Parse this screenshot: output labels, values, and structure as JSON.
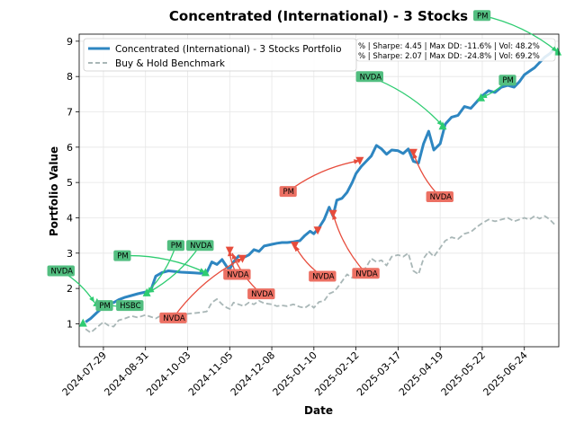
{
  "chart_data": {
    "type": "line",
    "title": "Concentrated (International) - 3 Stocks",
    "xlabel": "Date",
    "ylabel": "Portfolio Value",
    "ylim": [
      0.35,
      9.2
    ],
    "xlim": [
      "2024-07-10",
      "2025-07-21"
    ],
    "yticks": [
      1,
      2,
      3,
      4,
      5,
      6,
      7,
      8,
      9
    ],
    "xticks": [
      "2024-07-29",
      "2024-08-31",
      "2024-10-03",
      "2024-11-05",
      "2024-12-08",
      "2025-01-10",
      "2025-02-12",
      "2025-03-17",
      "2025-04-19",
      "2025-05-22",
      "2025-06-24"
    ],
    "grid": true,
    "legend_position": "top-left",
    "stats": [
      "% | Sharpe: 4.45 | Max DD: -11.6% | Vol: 48.2%",
      "% | Sharpe: 2.07 | Max DD: -24.8% | Vol: 69.2%"
    ],
    "series": [
      {
        "name": "Concentrated (International) - 3 Stocks Portfolio",
        "color": "#2e86c1",
        "style": "solid",
        "points": [
          [
            "2024-07-15",
            1.05
          ],
          [
            "2024-07-19",
            1.15
          ],
          [
            "2024-07-24",
            1.32
          ],
          [
            "2024-07-29",
            1.48
          ],
          [
            "2024-08-02",
            1.58
          ],
          [
            "2024-08-06",
            1.6
          ],
          [
            "2024-08-10",
            1.68
          ],
          [
            "2024-08-15",
            1.75
          ],
          [
            "2024-08-20",
            1.8
          ],
          [
            "2024-08-25",
            1.85
          ],
          [
            "2024-08-31",
            1.9
          ],
          [
            "2024-09-04",
            1.93
          ],
          [
            "2024-09-08",
            2.35
          ],
          [
            "2024-09-13",
            2.45
          ],
          [
            "2024-09-18",
            2.5
          ],
          [
            "2024-09-23",
            2.48
          ],
          [
            "2024-09-28",
            2.46
          ],
          [
            "2024-10-03",
            2.45
          ],
          [
            "2024-10-08",
            2.44
          ],
          [
            "2024-10-13",
            2.43
          ],
          [
            "2024-10-18",
            2.45
          ],
          [
            "2024-10-22",
            2.75
          ],
          [
            "2024-10-26",
            2.68
          ],
          [
            "2024-10-30",
            2.82
          ],
          [
            "2024-11-03",
            2.6
          ],
          [
            "2024-11-05",
            2.55
          ],
          [
            "2024-11-08",
            2.75
          ],
          [
            "2024-11-12",
            2.92
          ],
          [
            "2024-11-16",
            2.88
          ],
          [
            "2024-11-20",
            2.95
          ],
          [
            "2024-11-24",
            3.1
          ],
          [
            "2024-11-28",
            3.05
          ],
          [
            "2024-12-02",
            3.2
          ],
          [
            "2024-12-08",
            3.25
          ],
          [
            "2024-12-12",
            3.28
          ],
          [
            "2024-12-16",
            3.3
          ],
          [
            "2024-12-20",
            3.3
          ],
          [
            "2024-12-25",
            3.32
          ],
          [
            "2024-12-30",
            3.35
          ],
          [
            "2025-01-03",
            3.5
          ],
          [
            "2025-01-07",
            3.62
          ],
          [
            "2025-01-10",
            3.55
          ],
          [
            "2025-01-14",
            3.72
          ],
          [
            "2025-01-18",
            3.95
          ],
          [
            "2025-01-22",
            4.3
          ],
          [
            "2025-01-25",
            4.05
          ],
          [
            "2025-01-28",
            4.5
          ],
          [
            "2025-02-01",
            4.55
          ],
          [
            "2025-02-05",
            4.72
          ],
          [
            "2025-02-09",
            5.0
          ],
          [
            "2025-02-12",
            5.25
          ],
          [
            "2025-02-16",
            5.45
          ],
          [
            "2025-02-20",
            5.6
          ],
          [
            "2025-02-24",
            5.75
          ],
          [
            "2025-02-28",
            6.05
          ],
          [
            "2025-03-04",
            5.95
          ],
          [
            "2025-03-08",
            5.8
          ],
          [
            "2025-03-12",
            5.92
          ],
          [
            "2025-03-17",
            5.9
          ],
          [
            "2025-03-21",
            5.82
          ],
          [
            "2025-03-25",
            5.95
          ],
          [
            "2025-03-29",
            5.6
          ],
          [
            "2025-04-02",
            5.55
          ],
          [
            "2025-04-06",
            6.1
          ],
          [
            "2025-04-10",
            6.45
          ],
          [
            "2025-04-14",
            5.92
          ],
          [
            "2025-04-19",
            6.1
          ],
          [
            "2025-04-23",
            6.65
          ],
          [
            "2025-04-28",
            6.85
          ],
          [
            "2025-05-03",
            6.9
          ],
          [
            "2025-05-08",
            7.15
          ],
          [
            "2025-05-13",
            7.1
          ],
          [
            "2025-05-18",
            7.3
          ],
          [
            "2025-05-22",
            7.45
          ],
          [
            "2025-05-27",
            7.6
          ],
          [
            "2025-06-01",
            7.55
          ],
          [
            "2025-06-06",
            7.7
          ],
          [
            "2025-06-11",
            7.75
          ],
          [
            "2025-06-16",
            7.7
          ],
          [
            "2025-06-20",
            7.85
          ],
          [
            "2025-06-24",
            8.05
          ],
          [
            "2025-06-28",
            8.15
          ],
          [
            "2025-07-02",
            8.25
          ],
          [
            "2025-07-06",
            8.4
          ],
          [
            "2025-07-10",
            8.55
          ],
          [
            "2025-07-14",
            8.65
          ],
          [
            "2025-07-18",
            8.8
          ]
        ]
      },
      {
        "name": "Buy & Hold Benchmark",
        "color": "#a9b7b7",
        "style": "dashed",
        "points": [
          [
            "2024-07-15",
            0.85
          ],
          [
            "2024-07-19",
            0.75
          ],
          [
            "2024-07-24",
            0.9
          ],
          [
            "2024-07-29",
            1.05
          ],
          [
            "2024-08-02",
            0.95
          ],
          [
            "2024-08-06",
            0.92
          ],
          [
            "2024-08-10",
            1.1
          ],
          [
            "2024-08-15",
            1.15
          ],
          [
            "2024-08-20",
            1.22
          ],
          [
            "2024-08-25",
            1.18
          ],
          [
            "2024-08-31",
            1.25
          ],
          [
            "2024-09-04",
            1.2
          ],
          [
            "2024-09-08",
            1.15
          ],
          [
            "2024-09-13",
            1.25
          ],
          [
            "2024-09-18",
            1.28
          ],
          [
            "2024-09-23",
            1.3
          ],
          [
            "2024-09-28",
            1.25
          ],
          [
            "2024-10-03",
            1.28
          ],
          [
            "2024-10-08",
            1.3
          ],
          [
            "2024-10-13",
            1.32
          ],
          [
            "2024-10-18",
            1.35
          ],
          [
            "2024-10-22",
            1.6
          ],
          [
            "2024-10-26",
            1.7
          ],
          [
            "2024-10-30",
            1.55
          ],
          [
            "2024-11-03",
            1.45
          ],
          [
            "2024-11-05",
            1.42
          ],
          [
            "2024-11-08",
            1.6
          ],
          [
            "2024-11-12",
            1.55
          ],
          [
            "2024-11-16",
            1.5
          ],
          [
            "2024-11-20",
            1.6
          ],
          [
            "2024-11-24",
            1.55
          ],
          [
            "2024-11-28",
            1.65
          ],
          [
            "2024-12-02",
            1.58
          ],
          [
            "2024-12-08",
            1.55
          ],
          [
            "2024-12-12",
            1.5
          ],
          [
            "2024-12-16",
            1.52
          ],
          [
            "2024-12-20",
            1.5
          ],
          [
            "2024-12-25",
            1.55
          ],
          [
            "2024-12-30",
            1.48
          ],
          [
            "2025-01-03",
            1.45
          ],
          [
            "2025-01-07",
            1.55
          ],
          [
            "2025-01-10",
            1.45
          ],
          [
            "2025-01-14",
            1.62
          ],
          [
            "2025-01-18",
            1.65
          ],
          [
            "2025-01-22",
            1.85
          ],
          [
            "2025-01-25",
            1.9
          ],
          [
            "2025-01-28",
            2.0
          ],
          [
            "2025-02-01",
            2.2
          ],
          [
            "2025-02-05",
            2.4
          ],
          [
            "2025-02-09",
            2.3
          ],
          [
            "2025-02-12",
            2.5
          ],
          [
            "2025-02-16",
            2.45
          ],
          [
            "2025-02-20",
            2.6
          ],
          [
            "2025-02-24",
            2.85
          ],
          [
            "2025-02-28",
            2.75
          ],
          [
            "2025-03-04",
            2.8
          ],
          [
            "2025-03-08",
            2.65
          ],
          [
            "2025-03-12",
            2.9
          ],
          [
            "2025-03-17",
            2.95
          ],
          [
            "2025-03-21",
            2.9
          ],
          [
            "2025-03-25",
            3.0
          ],
          [
            "2025-03-29",
            2.5
          ],
          [
            "2025-04-02",
            2.4
          ],
          [
            "2025-04-06",
            2.85
          ],
          [
            "2025-04-10",
            3.05
          ],
          [
            "2025-04-14",
            2.9
          ],
          [
            "2025-04-19",
            3.15
          ],
          [
            "2025-04-23",
            3.35
          ],
          [
            "2025-04-28",
            3.45
          ],
          [
            "2025-05-03",
            3.4
          ],
          [
            "2025-05-08",
            3.55
          ],
          [
            "2025-05-13",
            3.6
          ],
          [
            "2025-05-18",
            3.75
          ],
          [
            "2025-05-22",
            3.85
          ],
          [
            "2025-05-27",
            3.95
          ],
          [
            "2025-06-01",
            3.9
          ],
          [
            "2025-06-06",
            3.95
          ],
          [
            "2025-06-11",
            4.0
          ],
          [
            "2025-06-16",
            3.9
          ],
          [
            "2025-06-20",
            3.95
          ],
          [
            "2025-06-24",
            4.0
          ],
          [
            "2025-06-28",
            3.95
          ],
          [
            "2025-07-02",
            4.05
          ],
          [
            "2025-07-06",
            3.98
          ],
          [
            "2025-07-10",
            4.05
          ],
          [
            "2025-07-14",
            3.95
          ],
          [
            "2025-07-18",
            3.8
          ]
        ]
      }
    ],
    "buy_color": "#2ecc71",
    "sell_color": "#e74c3c",
    "label_buy_color": "#52be80",
    "label_sell_color": "#ec7063",
    "markers": [
      {
        "date": "2024-07-13",
        "value": 1.02,
        "kind": "buy"
      },
      {
        "date": "2024-07-24",
        "value": 1.6,
        "kind": "buy"
      },
      {
        "date": "2024-09-01",
        "value": 1.88,
        "kind": "buy"
      },
      {
        "date": "2024-10-17",
        "value": 2.45,
        "kind": "buy"
      },
      {
        "date": "2024-11-05",
        "value": 3.08,
        "kind": "sell"
      },
      {
        "date": "2024-11-15",
        "value": 2.85,
        "kind": "sell"
      },
      {
        "date": "2024-12-26",
        "value": 3.22,
        "kind": "sell"
      },
      {
        "date": "2025-01-13",
        "value": 3.65,
        "kind": "sell"
      },
      {
        "date": "2025-01-25",
        "value": 4.12,
        "kind": "sell"
      },
      {
        "date": "2025-02-15",
        "value": 5.62,
        "kind": "sell"
      },
      {
        "date": "2025-03-29",
        "value": 5.85,
        "kind": "sell"
      },
      {
        "date": "2025-04-21",
        "value": 6.6,
        "kind": "buy"
      },
      {
        "date": "2025-05-21",
        "value": 7.4,
        "kind": "buy"
      },
      {
        "date": "2025-07-20",
        "value": 8.7,
        "kind": "buy"
      }
    ],
    "annotations": [
      {
        "text": "NVDA",
        "kind": "buy",
        "label_date": "2024-06-15",
        "label_value": 2.65,
        "target_date": "2024-07-22",
        "target_value": 1.6
      },
      {
        "text": "PM",
        "kind": "buy",
        "label_date": "2024-08-06",
        "label_value": 3.08,
        "target_date": "2024-10-17",
        "target_value": 2.45
      },
      {
        "text": "PM",
        "kind": "buy",
        "label_date": "2024-07-23",
        "label_value": 1.67,
        "target_date": "2024-07-24",
        "target_value": 1.6
      },
      {
        "text": "HSBC",
        "kind": "buy",
        "label_date": "2024-08-08",
        "label_value": 1.67,
        "target_date": "2024-07-25",
        "target_value": 1.6
      },
      {
        "text": "PM",
        "kind": "buy",
        "label_date": "2024-09-17",
        "label_value": 3.37,
        "target_date": "2024-09-01",
        "target_value": 1.88
      },
      {
        "text": "NVDA",
        "kind": "buy",
        "label_date": "2024-10-02",
        "label_value": 3.37,
        "target_date": "2024-09-02",
        "target_value": 1.88
      },
      {
        "text": "NVDA",
        "kind": "sell",
        "label_date": "2024-09-11",
        "label_value": 1.32,
        "target_date": "2024-11-15",
        "target_value": 2.85
      },
      {
        "text": "NVDA",
        "kind": "sell",
        "label_date": "2024-10-31",
        "label_value": 2.55,
        "target_date": "2024-11-05",
        "target_value": 3.08
      },
      {
        "text": "NVDA",
        "kind": "sell",
        "label_date": "2024-11-19",
        "label_value": 2.0,
        "target_date": "2024-11-07",
        "target_value": 3.0
      },
      {
        "text": "PM",
        "kind": "sell",
        "label_date": "2024-12-14",
        "label_value": 4.9,
        "target_date": "2025-02-15",
        "target_value": 5.62
      },
      {
        "text": "NVDA",
        "kind": "sell",
        "label_date": "2025-01-06",
        "label_value": 2.5,
        "target_date": "2024-12-26",
        "target_value": 3.22
      },
      {
        "text": "NVDA",
        "kind": "sell",
        "label_date": "2025-02-09",
        "label_value": 2.58,
        "target_date": "2025-01-25",
        "target_value": 4.12
      },
      {
        "text": "NVDA",
        "kind": "sell",
        "label_date": "2025-04-08",
        "label_value": 4.75,
        "target_date": "2025-03-29",
        "target_value": 5.85
      },
      {
        "text": "NVDA",
        "kind": "buy",
        "label_date": "2025-02-12",
        "label_value": 8.15,
        "target_date": "2025-04-21",
        "target_value": 6.6
      },
      {
        "text": "PM",
        "kind": "buy",
        "label_date": "2025-06-04",
        "label_value": 8.05,
        "target_date": "2025-05-21",
        "target_value": 7.4
      },
      {
        "text": "PM",
        "kind": "buy",
        "label_date": "2025-05-15",
        "label_value": 9.88,
        "target_date": "2025-07-20",
        "target_value": 8.7
      }
    ]
  }
}
